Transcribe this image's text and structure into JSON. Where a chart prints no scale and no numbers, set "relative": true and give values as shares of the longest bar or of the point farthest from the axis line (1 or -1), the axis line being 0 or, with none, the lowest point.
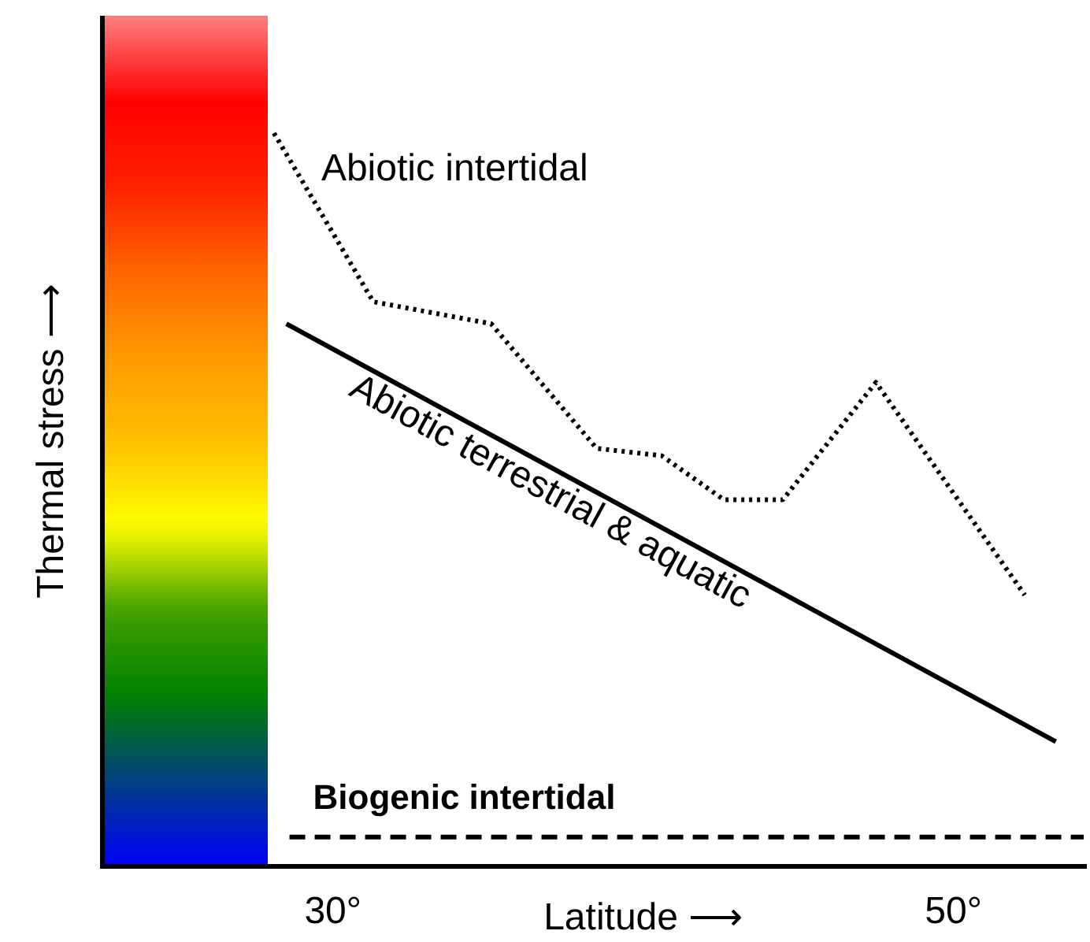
{
  "chart_data": {
    "type": "line",
    "relative": true,
    "xlabel": "Latitude ⟶",
    "annotations": [
      "Thermal stress ⟶"
    ],
    "xlim": [
      27.9,
      54.3
    ],
    "xticks": [
      {
        "value": 30,
        "label": "30°"
      },
      {
        "value": 50,
        "label": "50°"
      }
    ],
    "grid": false,
    "series": [
      {
        "name": "Abiotic intertidal",
        "color": "#000000",
        "line_style": "dotted",
        "x": [
          28.1,
          31.3,
          35.1,
          38.5,
          40.6,
          42.6,
          44.5,
          47.5,
          52.3
        ],
        "values": [
          1,
          0.77,
          0.74,
          0.57,
          0.56,
          0.5,
          0.5,
          0.66,
          0.37
        ]
      },
      {
        "name": "Abiotic terrestrial & aquatic",
        "color": "#000000",
        "line_style": "solid",
        "x": [
          28.5,
          53.3
        ],
        "values": [
          0.74,
          0.17
        ]
      },
      {
        "name": "Biogenic intertidal",
        "color": "#000000",
        "line_style": "dashed",
        "x": [
          28.6,
          54.2
        ],
        "values": [
          0.04,
          0.04
        ]
      }
    ]
  }
}
